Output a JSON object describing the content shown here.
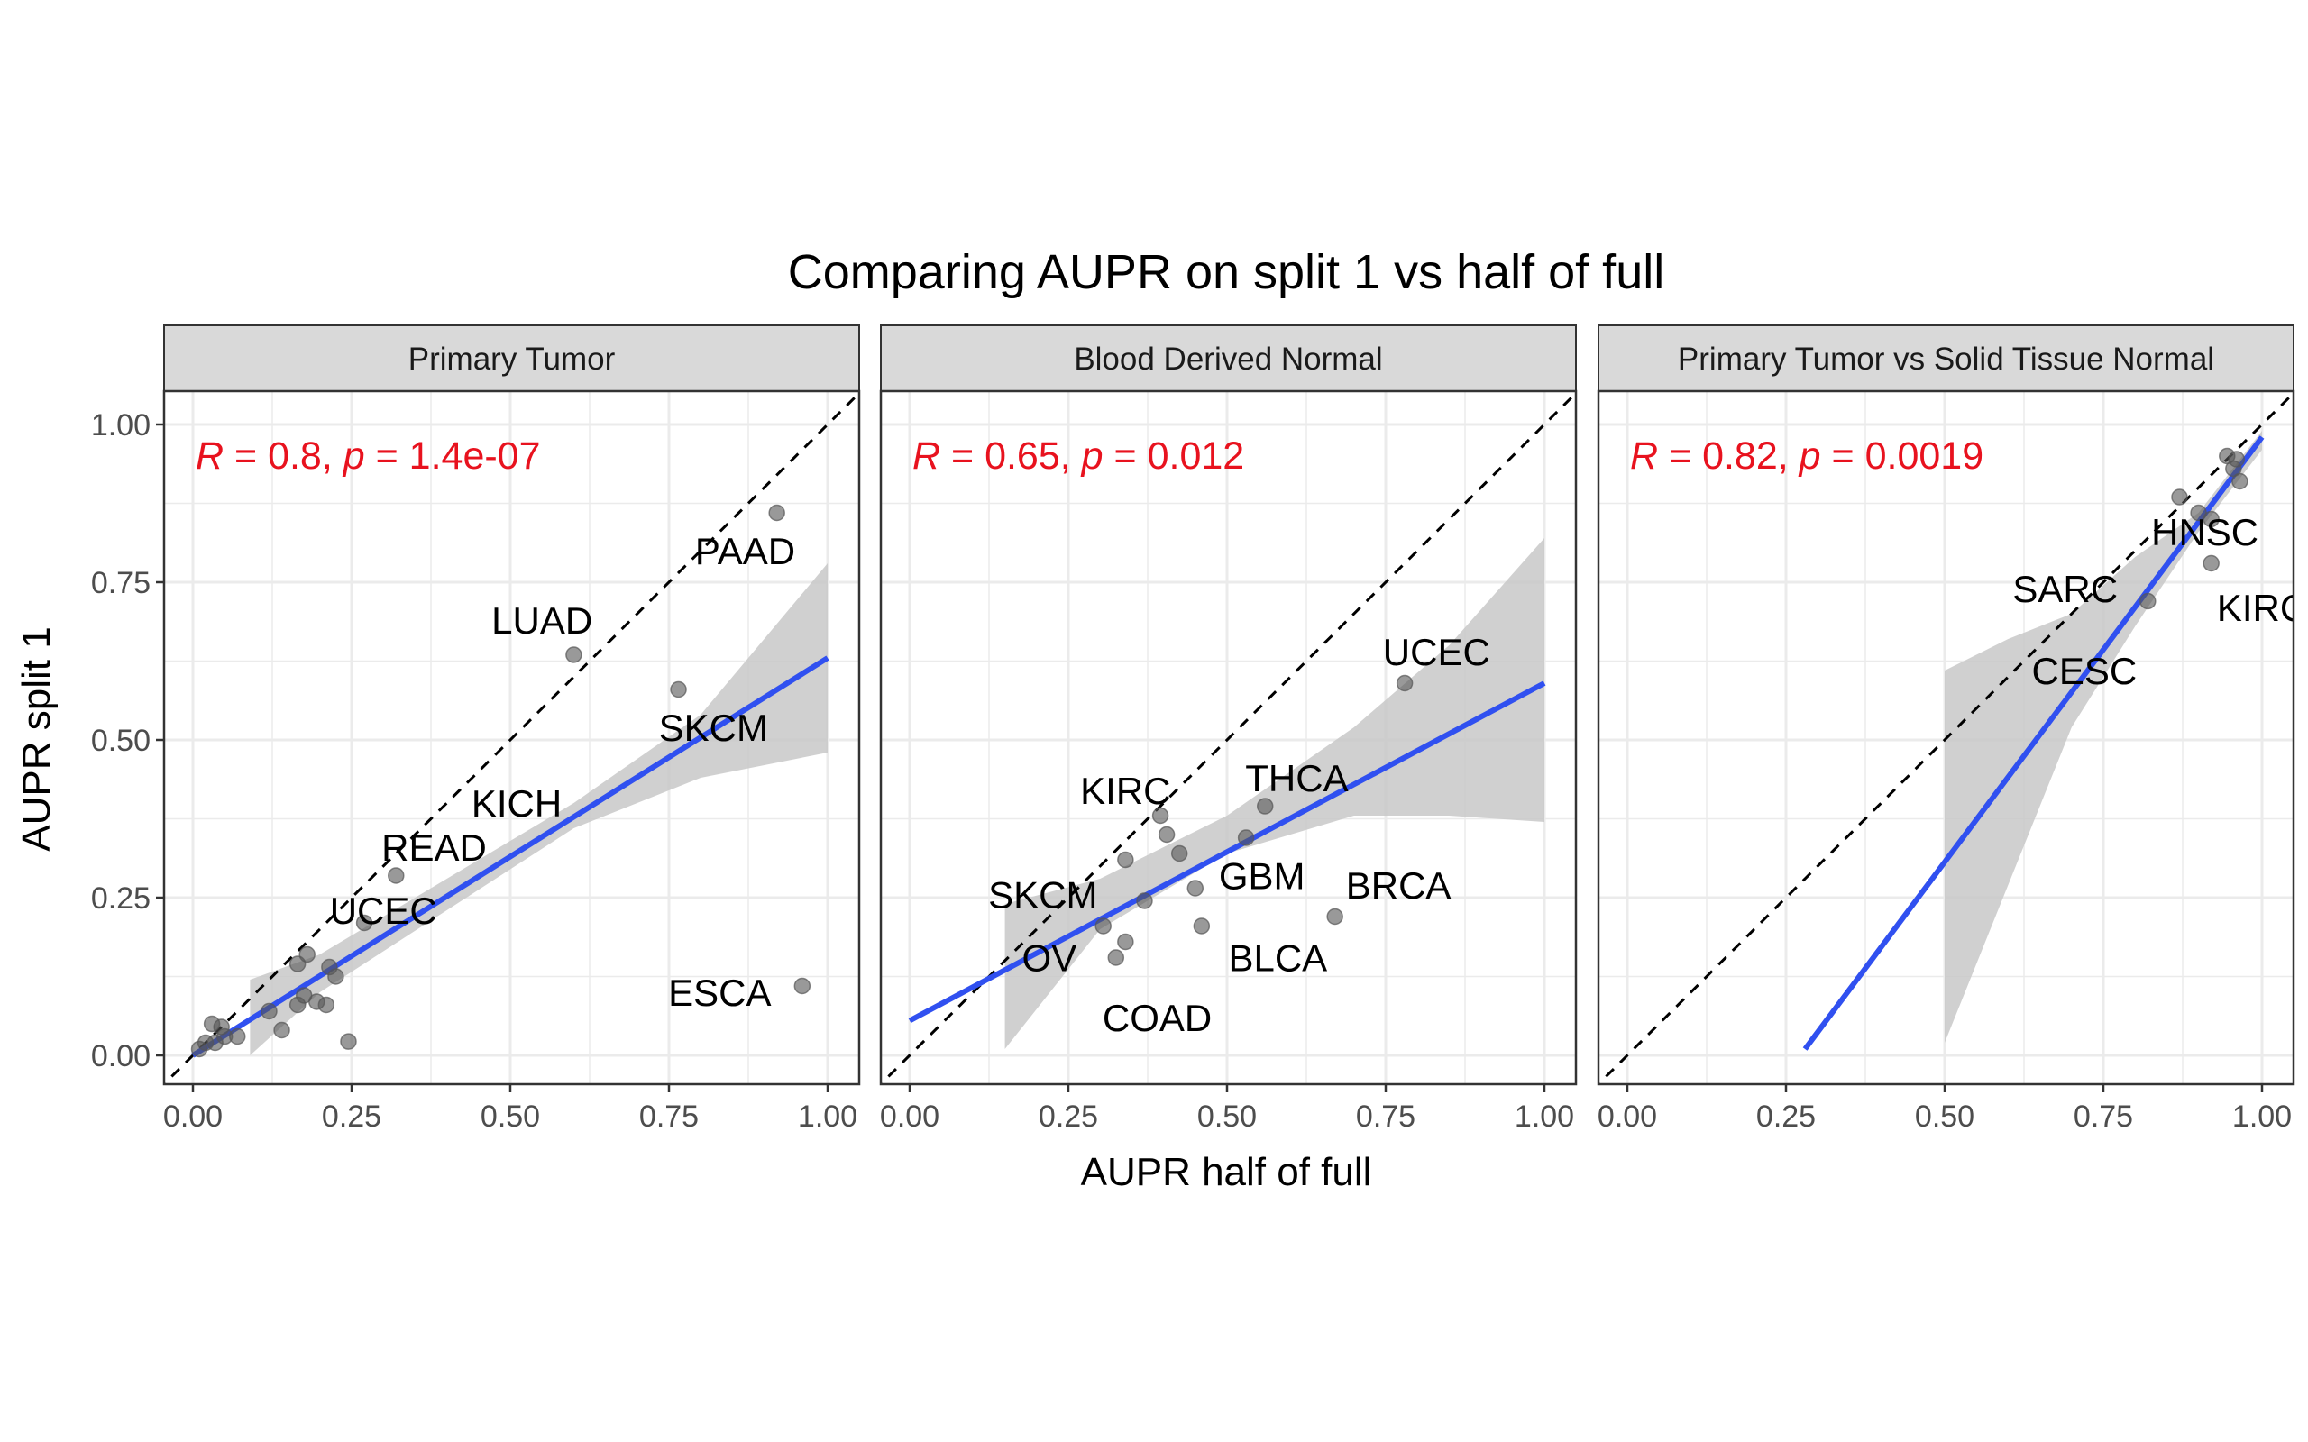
{
  "title": "Comparing AUPR on split 1 vs half of full",
  "xlabel": "AUPR half of full",
  "ylabel": "AUPR split 1",
  "colors": {
    "point": "#555555",
    "fit_line": "#3050f0",
    "ribbon": "#c8c8c8",
    "stat_text": "#e8121e",
    "strip_bg": "#d9d9d9",
    "grid": "#ebebeb"
  },
  "chart_data": [
    {
      "type": "scatter",
      "panel": "Primary Tumor",
      "stat": {
        "r_label": "R",
        "r_value": " = 0.8, ",
        "p_label": "p",
        "p_value": " = 1.4e-07"
      },
      "xlim": [
        0,
        1
      ],
      "ylim": [
        0,
        1
      ],
      "xticks": [
        "0.00",
        "0.25",
        "0.50",
        "0.75",
        "1.00"
      ],
      "yticks": [
        "0.00",
        "0.25",
        "0.50",
        "0.75",
        "1.00"
      ],
      "points": [
        {
          "x": 0.92,
          "y": 0.86
        },
        {
          "x": 0.6,
          "y": 0.635
        },
        {
          "x": 0.765,
          "y": 0.58
        },
        {
          "x": 0.96,
          "y": 0.11
        },
        {
          "x": 0.32,
          "y": 0.285
        },
        {
          "x": 0.27,
          "y": 0.21
        },
        {
          "x": 0.245,
          "y": 0.022
        },
        {
          "x": 0.18,
          "y": 0.16
        },
        {
          "x": 0.165,
          "y": 0.145
        },
        {
          "x": 0.215,
          "y": 0.14
        },
        {
          "x": 0.225,
          "y": 0.125
        },
        {
          "x": 0.12,
          "y": 0.07
        },
        {
          "x": 0.14,
          "y": 0.04
        },
        {
          "x": 0.165,
          "y": 0.08
        },
        {
          "x": 0.175,
          "y": 0.095
        },
        {
          "x": 0.195,
          "y": 0.085
        },
        {
          "x": 0.21,
          "y": 0.08
        },
        {
          "x": 0.03,
          "y": 0.05
        },
        {
          "x": 0.045,
          "y": 0.045
        },
        {
          "x": 0.02,
          "y": 0.02
        },
        {
          "x": 0.01,
          "y": 0.01
        },
        {
          "x": 0.035,
          "y": 0.02
        },
        {
          "x": 0.07,
          "y": 0.03
        },
        {
          "x": 0.05,
          "y": 0.03
        }
      ],
      "fit": {
        "x": [
          0.0,
          1.0
        ],
        "y": [
          0.0,
          0.63
        ]
      },
      "ribbon": {
        "x": [
          0.09,
          0.2,
          0.4,
          0.6,
          0.8,
          1.0
        ],
        "lower": [
          0.0,
          0.1,
          0.23,
          0.36,
          0.44,
          0.48
        ],
        "upper": [
          0.12,
          0.16,
          0.28,
          0.4,
          0.54,
          0.78
        ]
      },
      "labels": [
        {
          "text": "PAAD",
          "x": 0.87,
          "y": 0.8,
          "px": 0.92,
          "py": 0.86
        },
        {
          "text": "LUAD",
          "x": 0.55,
          "y": 0.69,
          "px": 0.6,
          "py": 0.635
        },
        {
          "text": "SKCM",
          "x": 0.82,
          "y": 0.52,
          "px": 0.765,
          "py": 0.58
        },
        {
          "text": "KICH",
          "x": 0.51,
          "y": 0.4,
          "px": 0.45,
          "py": 0.34
        },
        {
          "text": "READ",
          "x": 0.38,
          "y": 0.33,
          "px": 0.32,
          "py": 0.285
        },
        {
          "text": "UCEC",
          "x": 0.3,
          "y": 0.23,
          "px": 0.27,
          "py": 0.21
        },
        {
          "text": "ESCA",
          "x": 0.83,
          "y": 0.1,
          "px": 0.96,
          "py": 0.11
        }
      ]
    },
    {
      "type": "scatter",
      "panel": "Blood Derived Normal",
      "stat": {
        "r_label": "R",
        "r_value": " = 0.65, ",
        "p_label": "p",
        "p_value": " = 0.012"
      },
      "xlim": [
        0,
        1
      ],
      "ylim": [
        0,
        1
      ],
      "xticks": [
        "0.00",
        "0.25",
        "0.50",
        "0.75",
        "1.00"
      ],
      "yticks": [],
      "points": [
        {
          "x": 0.78,
          "y": 0.59
        },
        {
          "x": 0.56,
          "y": 0.395
        },
        {
          "x": 0.53,
          "y": 0.345
        },
        {
          "x": 0.395,
          "y": 0.38
        },
        {
          "x": 0.405,
          "y": 0.35
        },
        {
          "x": 0.425,
          "y": 0.32
        },
        {
          "x": 0.34,
          "y": 0.31
        },
        {
          "x": 0.45,
          "y": 0.265
        },
        {
          "x": 0.37,
          "y": 0.245
        },
        {
          "x": 0.67,
          "y": 0.22
        },
        {
          "x": 0.46,
          "y": 0.205
        },
        {
          "x": 0.305,
          "y": 0.205
        },
        {
          "x": 0.34,
          "y": 0.18
        },
        {
          "x": 0.325,
          "y": 0.155
        }
      ],
      "fit": {
        "x": [
          0.0,
          1.0
        ],
        "y": [
          0.055,
          0.59
        ]
      },
      "ribbon": {
        "x": [
          0.15,
          0.3,
          0.5,
          0.7,
          0.85,
          1.0
        ],
        "lower": [
          0.01,
          0.2,
          0.32,
          0.38,
          0.38,
          0.37
        ],
        "upper": [
          0.24,
          0.28,
          0.38,
          0.52,
          0.65,
          0.82
        ]
      },
      "labels": [
        {
          "text": "UCEC",
          "x": 0.83,
          "y": 0.64,
          "px": 0.78,
          "py": 0.59
        },
        {
          "text": "THCA",
          "x": 0.61,
          "y": 0.44,
          "px": 0.56,
          "py": 0.395
        },
        {
          "text": "KIRC",
          "x": 0.34,
          "y": 0.42,
          "px": 0.395,
          "py": 0.38
        },
        {
          "text": "GBM",
          "x": 0.555,
          "y": 0.285,
          "px": 0.45,
          "py": 0.265
        },
        {
          "text": "BRCA",
          "x": 0.77,
          "y": 0.27,
          "px": 0.67,
          "py": 0.22
        },
        {
          "text": "SKCM",
          "x": 0.21,
          "y": 0.255,
          "px": 0.27,
          "py": 0.27
        },
        {
          "text": "OV",
          "x": 0.22,
          "y": 0.155,
          "px": 0.305,
          "py": 0.205
        },
        {
          "text": "BLCA",
          "x": 0.58,
          "y": 0.155,
          "px": 0.46,
          "py": 0.205
        },
        {
          "text": "COAD",
          "x": 0.39,
          "y": 0.06,
          "px": 0.345,
          "py": 0.18
        }
      ]
    },
    {
      "type": "scatter",
      "panel": "Primary Tumor vs Solid Tissue Normal",
      "stat": {
        "r_label": "R",
        "r_value": " = 0.82, ",
        "p_label": "p",
        "p_value": " = 0.0019"
      },
      "xlim": [
        0,
        1
      ],
      "ylim": [
        0,
        1
      ],
      "xticks": [
        "0.00",
        "0.25",
        "0.50",
        "0.75",
        "1.00"
      ],
      "yticks": [],
      "points": [
        {
          "x": 0.945,
          "y": 0.95
        },
        {
          "x": 0.96,
          "y": 0.945
        },
        {
          "x": 0.955,
          "y": 0.93
        },
        {
          "x": 0.965,
          "y": 0.91
        },
        {
          "x": 0.87,
          "y": 0.885
        },
        {
          "x": 0.9,
          "y": 0.86
        },
        {
          "x": 0.92,
          "y": 0.85
        },
        {
          "x": 0.92,
          "y": 0.78
        },
        {
          "x": 0.82,
          "y": 0.72
        }
      ],
      "fit": {
        "x": [
          0.28,
          1.0
        ],
        "y": [
          0.01,
          0.98
        ]
      },
      "ribbon": {
        "x": [
          0.5,
          0.6,
          0.7,
          0.8,
          0.9,
          1.0
        ],
        "lower": [
          0.02,
          0.27,
          0.52,
          0.68,
          0.83,
          0.96
        ],
        "upper": [
          0.61,
          0.66,
          0.7,
          0.79,
          0.86,
          0.99
        ]
      },
      "labels": [
        {
          "text": "HNSC",
          "x": 0.91,
          "y": 0.83,
          "px": 0.92,
          "py": 0.85
        },
        {
          "text": "SARC",
          "x": 0.69,
          "y": 0.74,
          "px": 0.91,
          "py": 0.855
        },
        {
          "text": "KIRC",
          "x": 1.0,
          "y": 0.71,
          "px": 0.92,
          "py": 0.78
        },
        {
          "text": "CESC",
          "x": 0.72,
          "y": 0.61,
          "px": 0.82,
          "py": 0.72
        }
      ]
    }
  ]
}
